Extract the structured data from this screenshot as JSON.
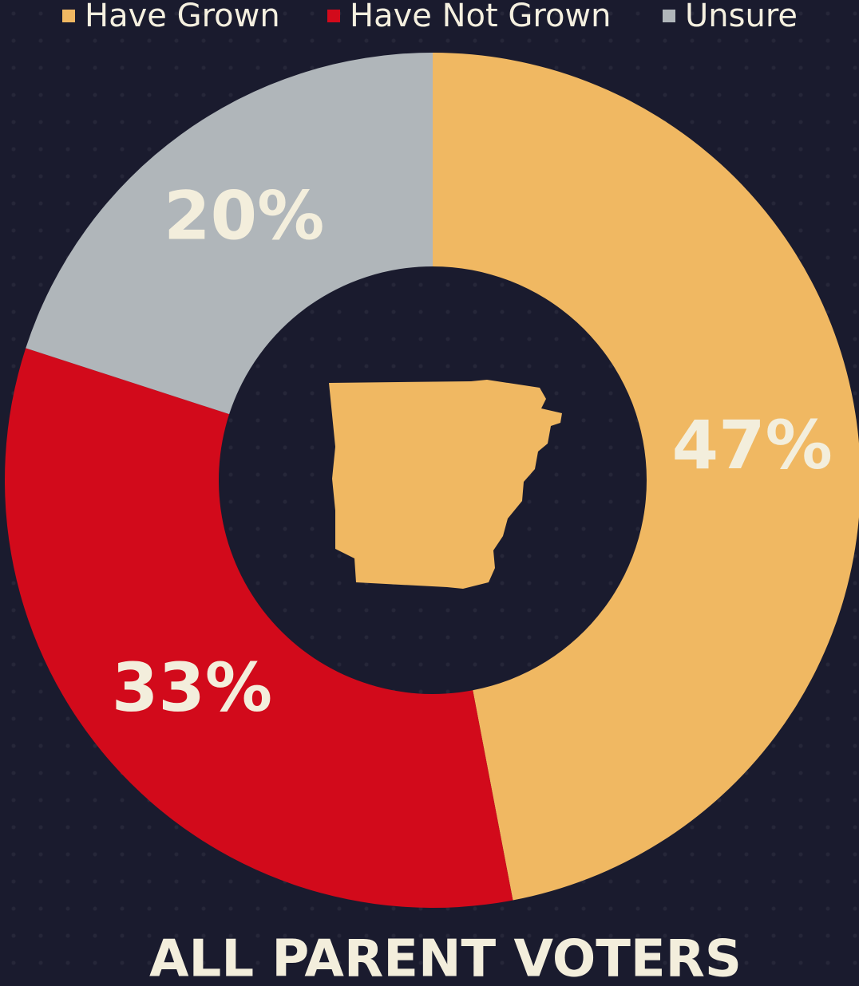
{
  "chart_data": {
    "type": "donut",
    "title": "ALL PARENT VOTERS",
    "categories": [
      "Have Grown",
      "Have Not Grown",
      "Unsure"
    ],
    "values": [
      47,
      33,
      20
    ],
    "value_labels": [
      "47%",
      "33%",
      "20%"
    ],
    "colors": [
      "#f0b862",
      "#d20a1b",
      "#b0b6ba"
    ]
  }
}
